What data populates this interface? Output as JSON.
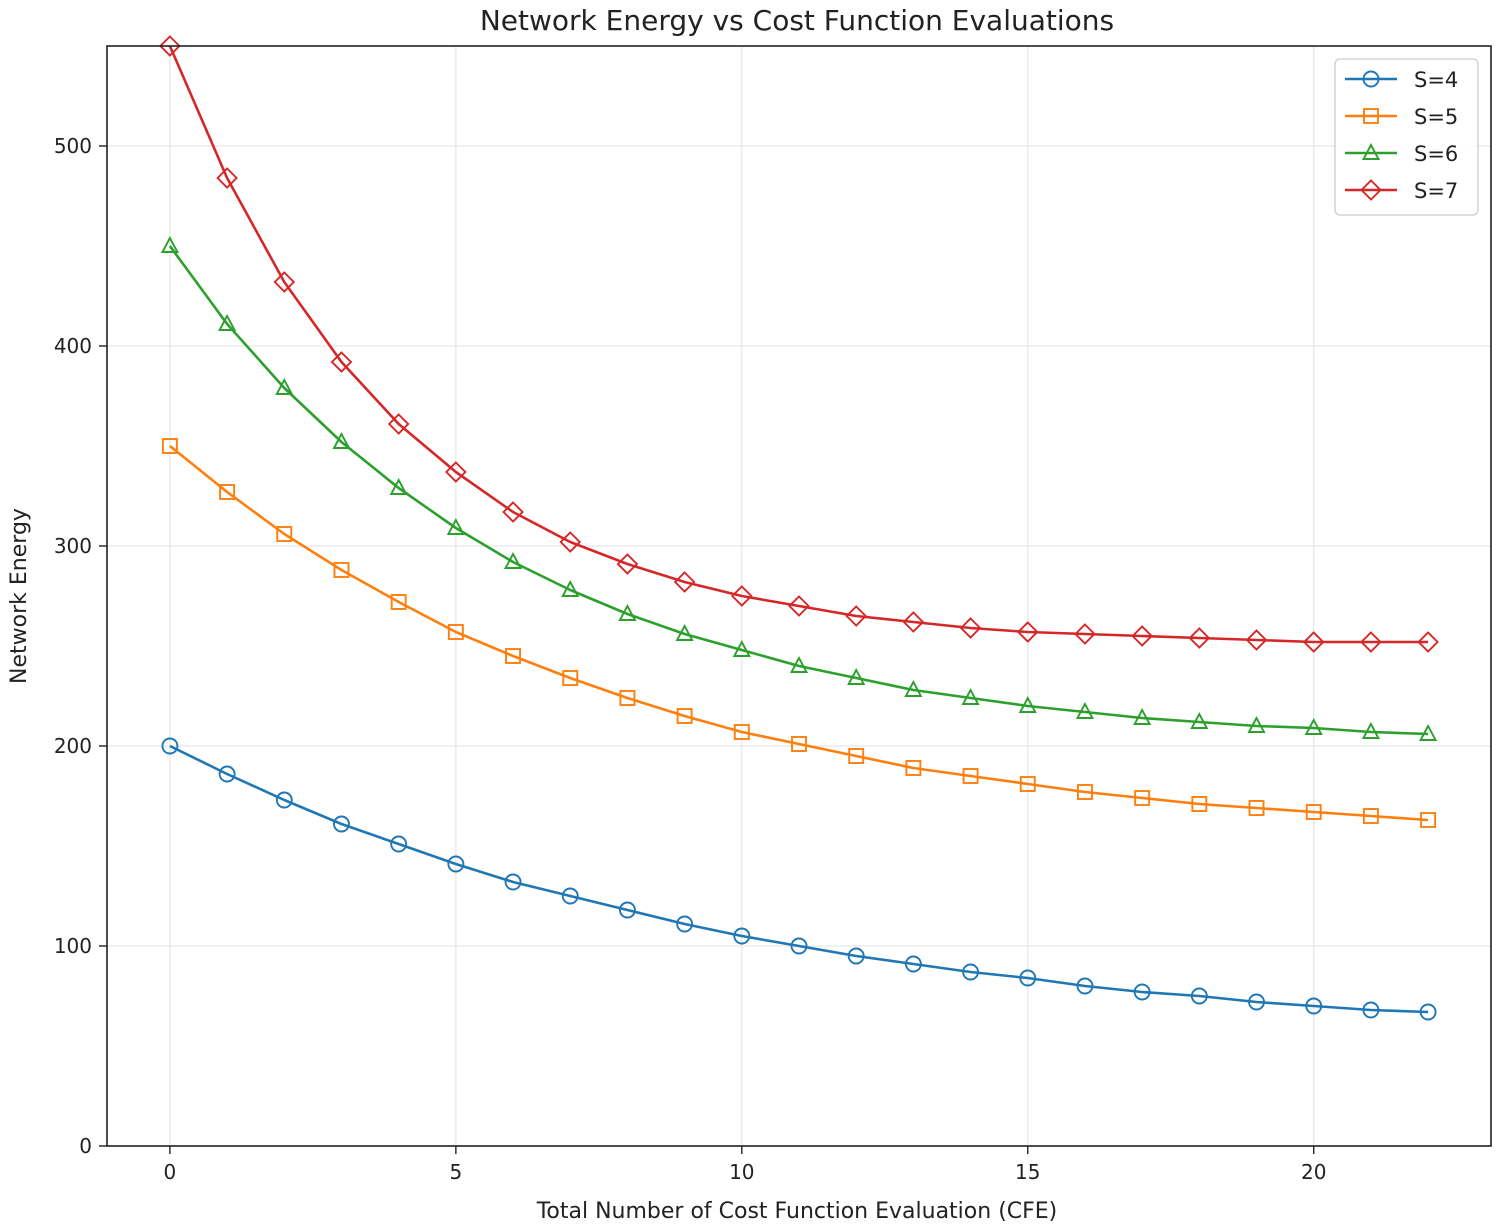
{
  "chart_data": {
    "type": "line",
    "title": "Network Energy vs Cost Function Evaluations",
    "xlabel": "Total Number of Cost Function Evaluation (CFE)",
    "ylabel": "Network Energy",
    "xlim": [
      -1.1,
      23.1
    ],
    "ylim": [
      0,
      550
    ],
    "xticks": [
      0,
      5,
      10,
      15,
      20
    ],
    "yticks": [
      0,
      100,
      200,
      300,
      400,
      500
    ],
    "grid": true,
    "legend_position": "top-right",
    "x": [
      0,
      1,
      2,
      3,
      4,
      5,
      6,
      7,
      8,
      9,
      10,
      11,
      12,
      13,
      14,
      15,
      16,
      17,
      18,
      19,
      20,
      21,
      22
    ],
    "series": [
      {
        "name": "S=4",
        "color": "#1f77b4",
        "marker": "circle",
        "values": [
          200,
          186,
          173,
          161,
          151,
          141,
          132,
          125,
          118,
          111,
          105,
          100,
          95,
          91,
          87,
          84,
          80,
          77,
          75,
          72,
          70,
          68,
          67
        ]
      },
      {
        "name": "S=5",
        "color": "#ff7f0e",
        "marker": "square",
        "values": [
          350,
          327,
          306,
          288,
          272,
          257,
          245,
          234,
          224,
          215,
          207,
          201,
          195,
          189,
          185,
          181,
          177,
          174,
          171,
          169,
          167,
          165,
          163
        ]
      },
      {
        "name": "S=6",
        "color": "#2ca02c",
        "marker": "triangle",
        "values": [
          450,
          411,
          379,
          352,
          329,
          309,
          292,
          278,
          266,
          256,
          248,
          240,
          234,
          228,
          224,
          220,
          217,
          214,
          212,
          210,
          209,
          207,
          206
        ]
      },
      {
        "name": "S=7",
        "color": "#d62728",
        "marker": "diamond",
        "values": [
          550,
          484,
          432,
          392,
          361,
          337,
          317,
          302,
          291,
          282,
          275,
          270,
          265,
          262,
          259,
          257,
          256,
          255,
          254,
          253,
          252,
          252,
          252
        ]
      }
    ]
  }
}
